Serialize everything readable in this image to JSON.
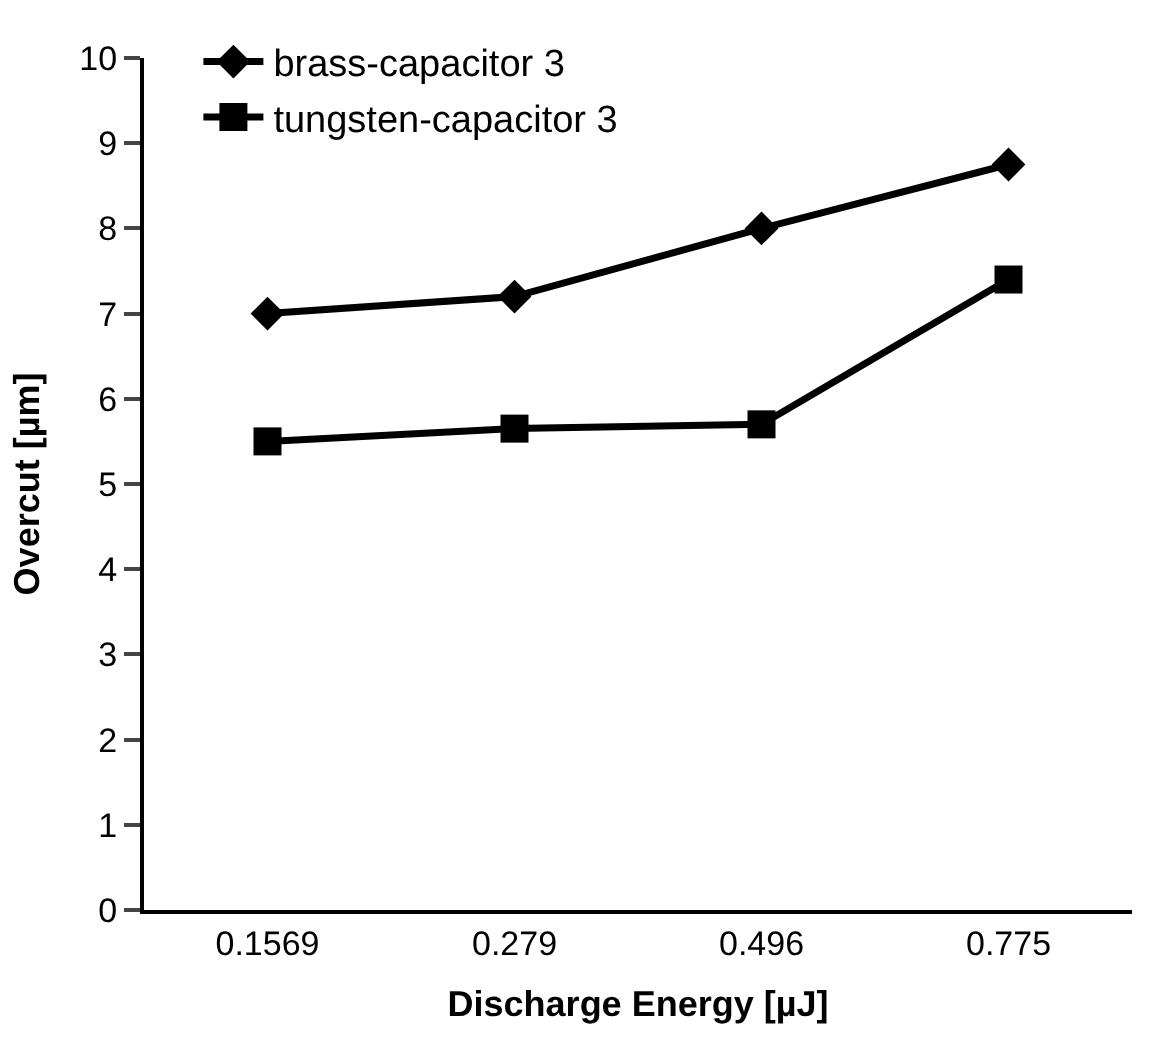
{
  "chart_data": {
    "type": "line",
    "xlabel": "Discharge Energy [µJ]",
    "ylabel": "Overcut [µm]",
    "categories": [
      "0.1569",
      "0.279",
      "0.496",
      "0.775"
    ],
    "series": [
      {
        "name": "brass-capacitor 3",
        "color": "#000000",
        "marker": "diamond",
        "values": [
          7.0,
          7.2,
          8.0,
          8.75
        ]
      },
      {
        "name": "tungsten-capacitor 3",
        "color": "#000000",
        "marker": "square",
        "values": [
          5.5,
          5.65,
          5.7,
          7.4
        ]
      }
    ],
    "ylim": [
      0,
      10
    ],
    "yticks": [
      0,
      1,
      2,
      3,
      4,
      5,
      6,
      7,
      8,
      9,
      10
    ],
    "legend": "top left",
    "line_style": "solid"
  }
}
